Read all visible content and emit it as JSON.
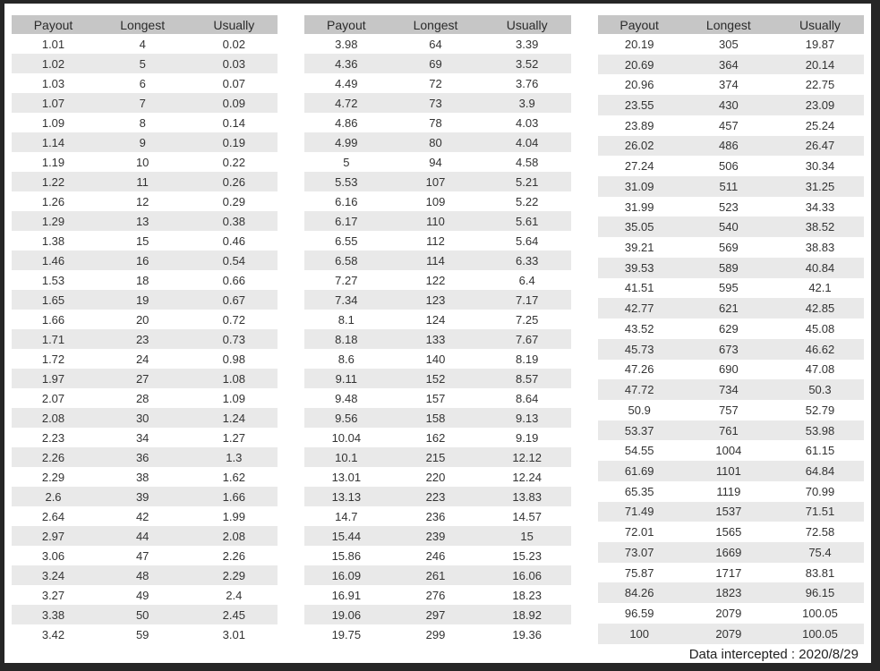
{
  "columns": [
    "Payout",
    "Longest",
    "Usually"
  ],
  "tables": [
    {
      "name": "payout-table-1",
      "rows": [
        [
          "1.01",
          "4",
          "0.02"
        ],
        [
          "1.02",
          "5",
          "0.03"
        ],
        [
          "1.03",
          "6",
          "0.07"
        ],
        [
          "1.07",
          "7",
          "0.09"
        ],
        [
          "1.09",
          "8",
          "0.14"
        ],
        [
          "1.14",
          "9",
          "0.19"
        ],
        [
          "1.19",
          "10",
          "0.22"
        ],
        [
          "1.22",
          "11",
          "0.26"
        ],
        [
          "1.26",
          "12",
          "0.29"
        ],
        [
          "1.29",
          "13",
          "0.38"
        ],
        [
          "1.38",
          "15",
          "0.46"
        ],
        [
          "1.46",
          "16",
          "0.54"
        ],
        [
          "1.53",
          "18",
          "0.66"
        ],
        [
          "1.65",
          "19",
          "0.67"
        ],
        [
          "1.66",
          "20",
          "0.72"
        ],
        [
          "1.71",
          "23",
          "0.73"
        ],
        [
          "1.72",
          "24",
          "0.98"
        ],
        [
          "1.97",
          "27",
          "1.08"
        ],
        [
          "2.07",
          "28",
          "1.09"
        ],
        [
          "2.08",
          "30",
          "1.24"
        ],
        [
          "2.23",
          "34",
          "1.27"
        ],
        [
          "2.26",
          "36",
          "1.3"
        ],
        [
          "2.29",
          "38",
          "1.62"
        ],
        [
          "2.6",
          "39",
          "1.66"
        ],
        [
          "2.64",
          "42",
          "1.99"
        ],
        [
          "2.97",
          "44",
          "2.08"
        ],
        [
          "3.06",
          "47",
          "2.26"
        ],
        [
          "3.24",
          "48",
          "2.29"
        ],
        [
          "3.27",
          "49",
          "2.4"
        ],
        [
          "3.38",
          "50",
          "2.45"
        ],
        [
          "3.42",
          "59",
          "3.01"
        ]
      ]
    },
    {
      "name": "payout-table-2",
      "rows": [
        [
          "3.98",
          "64",
          "3.39"
        ],
        [
          "4.36",
          "69",
          "3.52"
        ],
        [
          "4.49",
          "72",
          "3.76"
        ],
        [
          "4.72",
          "73",
          "3.9"
        ],
        [
          "4.86",
          "78",
          "4.03"
        ],
        [
          "4.99",
          "80",
          "4.04"
        ],
        [
          "5",
          "94",
          "4.58"
        ],
        [
          "5.53",
          "107",
          "5.21"
        ],
        [
          "6.16",
          "109",
          "5.22"
        ],
        [
          "6.17",
          "110",
          "5.61"
        ],
        [
          "6.55",
          "112",
          "5.64"
        ],
        [
          "6.58",
          "114",
          "6.33"
        ],
        [
          "7.27",
          "122",
          "6.4"
        ],
        [
          "7.34",
          "123",
          "7.17"
        ],
        [
          "8.1",
          "124",
          "7.25"
        ],
        [
          "8.18",
          "133",
          "7.67"
        ],
        [
          "8.6",
          "140",
          "8.19"
        ],
        [
          "9.11",
          "152",
          "8.57"
        ],
        [
          "9.48",
          "157",
          "8.64"
        ],
        [
          "9.56",
          "158",
          "9.13"
        ],
        [
          "10.04",
          "162",
          "9.19"
        ],
        [
          "10.1",
          "215",
          "12.12"
        ],
        [
          "13.01",
          "220",
          "12.24"
        ],
        [
          "13.13",
          "223",
          "13.83"
        ],
        [
          "14.7",
          "236",
          "14.57"
        ],
        [
          "15.44",
          "239",
          "15"
        ],
        [
          "15.86",
          "246",
          "15.23"
        ],
        [
          "16.09",
          "261",
          "16.06"
        ],
        [
          "16.91",
          "276",
          "18.23"
        ],
        [
          "19.06",
          "297",
          "18.92"
        ],
        [
          "19.75",
          "299",
          "19.36"
        ]
      ]
    },
    {
      "name": "payout-table-3",
      "rows": [
        [
          "20.19",
          "305",
          "19.87"
        ],
        [
          "20.69",
          "364",
          "20.14"
        ],
        [
          "20.96",
          "374",
          "22.75"
        ],
        [
          "23.55",
          "430",
          "23.09"
        ],
        [
          "23.89",
          "457",
          "25.24"
        ],
        [
          "26.02",
          "486",
          "26.47"
        ],
        [
          "27.24",
          "506",
          "30.34"
        ],
        [
          "31.09",
          "511",
          "31.25"
        ],
        [
          "31.99",
          "523",
          "34.33"
        ],
        [
          "35.05",
          "540",
          "38.52"
        ],
        [
          "39.21",
          "569",
          "38.83"
        ],
        [
          "39.53",
          "589",
          "40.84"
        ],
        [
          "41.51",
          "595",
          "42.1"
        ],
        [
          "42.77",
          "621",
          "42.85"
        ],
        [
          "43.52",
          "629",
          "45.08"
        ],
        [
          "45.73",
          "673",
          "46.62"
        ],
        [
          "47.26",
          "690",
          "47.08"
        ],
        [
          "47.72",
          "734",
          "50.3"
        ],
        [
          "50.9",
          "757",
          "52.79"
        ],
        [
          "53.37",
          "761",
          "53.98"
        ],
        [
          "54.55",
          "1004",
          "61.15"
        ],
        [
          "61.69",
          "1101",
          "64.84"
        ],
        [
          "65.35",
          "1119",
          "70.99"
        ],
        [
          "71.49",
          "1537",
          "71.51"
        ],
        [
          "72.01",
          "1565",
          "72.58"
        ],
        [
          "73.07",
          "1669",
          "75.4"
        ],
        [
          "75.87",
          "1717",
          "83.81"
        ],
        [
          "84.26",
          "1823",
          "96.15"
        ],
        [
          "96.59",
          "2079",
          "100.05"
        ],
        [
          "100",
          "2079",
          "100.05"
        ]
      ]
    }
  ],
  "footer": {
    "label": "Data intercepted : 2020/8/29"
  },
  "colors": {
    "frame": "#262626",
    "page_bg": "#ffffff",
    "header_bg": "#c6c6c6",
    "row_alt_bg": "#e9e9e9",
    "text": "#333333"
  }
}
